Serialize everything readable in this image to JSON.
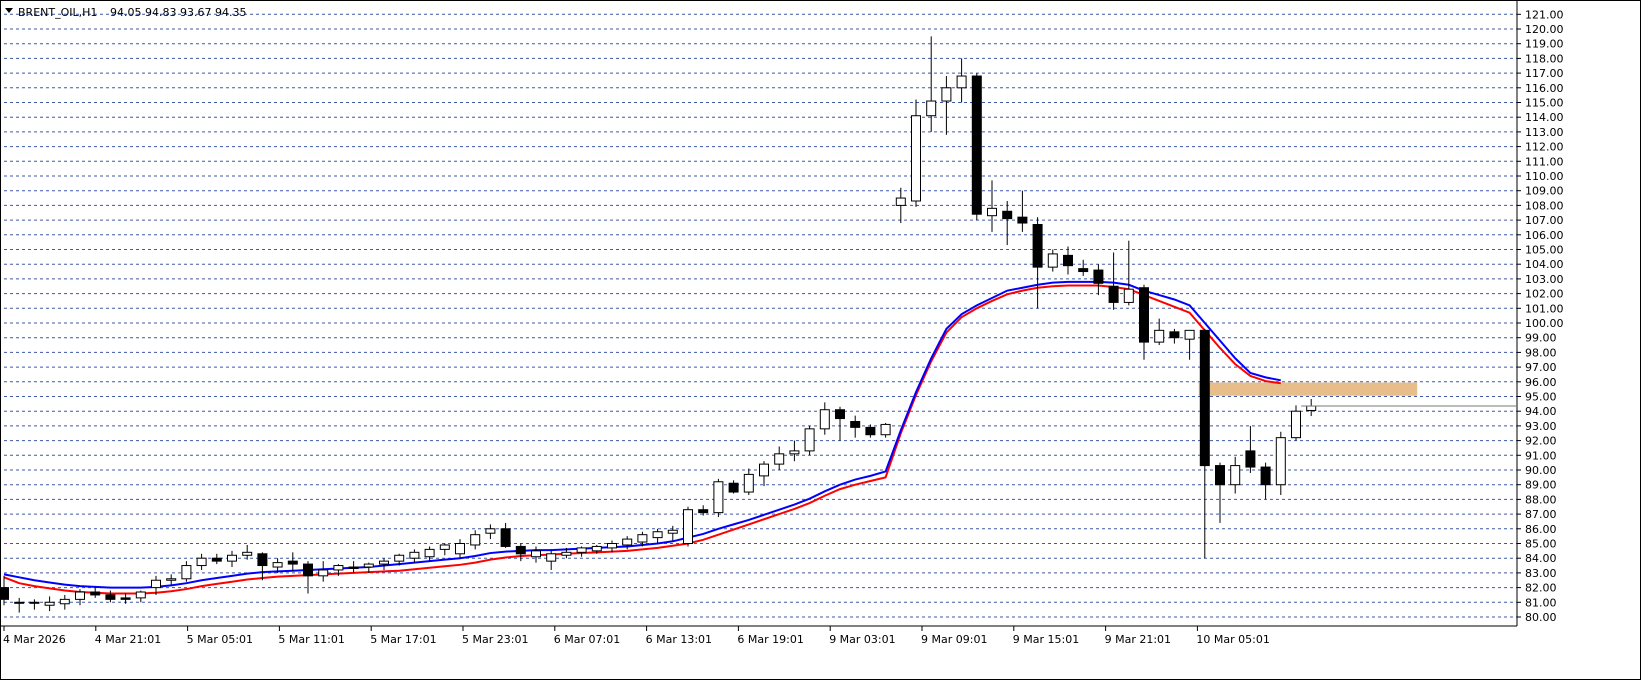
{
  "header": {
    "symbol": "BRENT_OIL,H1",
    "ohlc": "94.05 94.83 93.67 94.35"
  },
  "chart_data": {
    "type": "candlestick",
    "title": "BRENT_OIL,H1",
    "ylim": [
      80,
      121
    ],
    "y_ticks": [
      "80.00",
      "81.00",
      "82.00",
      "83.00",
      "84.00",
      "85.00",
      "86.00",
      "87.00",
      "88.00",
      "89.00",
      "90.00",
      "91.00",
      "92.00",
      "93.00",
      "94.00",
      "95.00",
      "96.00",
      "97.00",
      "98.00",
      "99.00",
      "100.00",
      "101.00",
      "102.00",
      "103.00",
      "104.00",
      "105.00",
      "106.00",
      "107.00",
      "108.00",
      "109.00",
      "110.00",
      "111.00",
      "112.00",
      "113.00",
      "114.00",
      "115.00",
      "116.00",
      "117.00",
      "118.00",
      "119.00",
      "120.00",
      "121.00"
    ],
    "x_labels": [
      "4 Mar 2026",
      "4 Mar 21:01",
      "5 Mar 05:01",
      "5 Mar 11:01",
      "5 Mar 17:01",
      "5 Mar 23:01",
      "6 Mar 07:01",
      "6 Mar 13:01",
      "6 Mar 19:01",
      "9 Mar 03:01",
      "9 Mar 09:01",
      "9 Mar 15:01",
      "9 Mar 21:01",
      "10 Mar 05:01"
    ],
    "grid": true,
    "grid_style": "dashed",
    "current_price": 94.35,
    "colors": {
      "background": "#ffffff",
      "grid": "#1e3c96",
      "bull_body": "#ffffff",
      "bear_body": "#000000",
      "ma_fast": "#0000ff",
      "ma_slow": "#ff0000",
      "zone": "#e6b983"
    },
    "candles": [
      {
        "o": 82.0,
        "h": 82.8,
        "l": 80.8,
        "c": 81.2
      },
      {
        "o": 81.0,
        "h": 81.3,
        "l": 80.3,
        "c": 81.0
      },
      {
        "o": 81.0,
        "h": 81.2,
        "l": 80.5,
        "c": 81.0
      },
      {
        "o": 80.8,
        "h": 81.4,
        "l": 80.4,
        "c": 81.0
      },
      {
        "o": 80.9,
        "h": 81.5,
        "l": 80.5,
        "c": 81.2
      },
      {
        "o": 81.2,
        "h": 81.9,
        "l": 80.8,
        "c": 81.7
      },
      {
        "o": 81.7,
        "h": 82.0,
        "l": 81.3,
        "c": 81.5
      },
      {
        "o": 81.5,
        "h": 81.8,
        "l": 81.0,
        "c": 81.2
      },
      {
        "o": 81.3,
        "h": 81.6,
        "l": 80.9,
        "c": 81.2
      },
      {
        "o": 81.3,
        "h": 81.8,
        "l": 81.0,
        "c": 81.7
      },
      {
        "o": 82.0,
        "h": 82.8,
        "l": 81.5,
        "c": 82.5
      },
      {
        "o": 82.5,
        "h": 82.9,
        "l": 82.2,
        "c": 82.6
      },
      {
        "o": 82.6,
        "h": 83.8,
        "l": 82.4,
        "c": 83.5
      },
      {
        "o": 83.5,
        "h": 84.3,
        "l": 83.2,
        "c": 84.0
      },
      {
        "o": 84.0,
        "h": 84.3,
        "l": 83.6,
        "c": 83.8
      },
      {
        "o": 83.8,
        "h": 84.5,
        "l": 83.4,
        "c": 84.2
      },
      {
        "o": 84.2,
        "h": 84.9,
        "l": 83.9,
        "c": 84.4
      },
      {
        "o": 84.3,
        "h": 84.4,
        "l": 82.5,
        "c": 83.5
      },
      {
        "o": 83.4,
        "h": 84.0,
        "l": 83.0,
        "c": 83.7
      },
      {
        "o": 83.8,
        "h": 84.4,
        "l": 83.1,
        "c": 83.6
      },
      {
        "o": 83.6,
        "h": 83.8,
        "l": 81.6,
        "c": 82.8
      },
      {
        "o": 82.8,
        "h": 83.8,
        "l": 82.4,
        "c": 83.2
      },
      {
        "o": 83.2,
        "h": 83.6,
        "l": 82.8,
        "c": 83.5
      },
      {
        "o": 83.4,
        "h": 83.8,
        "l": 83.0,
        "c": 83.3
      },
      {
        "o": 83.4,
        "h": 83.7,
        "l": 83.0,
        "c": 83.6
      },
      {
        "o": 83.6,
        "h": 84.0,
        "l": 83.2,
        "c": 83.8
      },
      {
        "o": 83.8,
        "h": 84.3,
        "l": 83.5,
        "c": 84.2
      },
      {
        "o": 84.0,
        "h": 84.6,
        "l": 83.7,
        "c": 84.4
      },
      {
        "o": 84.1,
        "h": 84.8,
        "l": 83.8,
        "c": 84.6
      },
      {
        "o": 84.6,
        "h": 85.0,
        "l": 84.2,
        "c": 84.9
      },
      {
        "o": 84.3,
        "h": 85.3,
        "l": 84.0,
        "c": 85.0
      },
      {
        "o": 84.9,
        "h": 85.9,
        "l": 84.6,
        "c": 85.6
      },
      {
        "o": 85.7,
        "h": 86.3,
        "l": 85.3,
        "c": 86.0
      },
      {
        "o": 86.0,
        "h": 86.4,
        "l": 84.7,
        "c": 84.8
      },
      {
        "o": 84.8,
        "h": 85.0,
        "l": 83.8,
        "c": 84.3
      },
      {
        "o": 84.1,
        "h": 84.8,
        "l": 83.7,
        "c": 84.5
      },
      {
        "o": 83.8,
        "h": 84.6,
        "l": 83.2,
        "c": 84.3
      },
      {
        "o": 84.2,
        "h": 84.7,
        "l": 84.0,
        "c": 84.4
      },
      {
        "o": 84.4,
        "h": 84.8,
        "l": 84.1,
        "c": 84.7
      },
      {
        "o": 84.5,
        "h": 84.9,
        "l": 84.3,
        "c": 84.8
      },
      {
        "o": 84.7,
        "h": 85.2,
        "l": 84.4,
        "c": 85.0
      },
      {
        "o": 84.9,
        "h": 85.5,
        "l": 84.6,
        "c": 85.3
      },
      {
        "o": 85.1,
        "h": 85.8,
        "l": 84.8,
        "c": 85.6
      },
      {
        "o": 85.4,
        "h": 86.0,
        "l": 85.0,
        "c": 85.8
      },
      {
        "o": 85.7,
        "h": 86.2,
        "l": 85.2,
        "c": 85.9
      },
      {
        "o": 85.0,
        "h": 87.5,
        "l": 84.8,
        "c": 87.3
      },
      {
        "o": 87.3,
        "h": 87.6,
        "l": 86.9,
        "c": 87.1
      },
      {
        "o": 87.1,
        "h": 89.4,
        "l": 86.8,
        "c": 89.2
      },
      {
        "o": 89.1,
        "h": 89.3,
        "l": 88.4,
        "c": 88.5
      },
      {
        "o": 88.5,
        "h": 90.1,
        "l": 88.3,
        "c": 89.7
      },
      {
        "o": 89.6,
        "h": 90.6,
        "l": 88.9,
        "c": 90.4
      },
      {
        "o": 90.4,
        "h": 91.6,
        "l": 90.0,
        "c": 91.1
      },
      {
        "o": 91.1,
        "h": 92.0,
        "l": 90.6,
        "c": 91.3
      },
      {
        "o": 91.3,
        "h": 93.0,
        "l": 91.0,
        "c": 92.8
      },
      {
        "o": 92.8,
        "h": 94.6,
        "l": 92.4,
        "c": 94.1
      },
      {
        "o": 94.1,
        "h": 94.3,
        "l": 92.0,
        "c": 93.5
      },
      {
        "o": 93.3,
        "h": 93.7,
        "l": 92.2,
        "c": 92.9
      },
      {
        "o": 92.9,
        "h": 93.1,
        "l": 92.2,
        "c": 92.4
      },
      {
        "o": 92.4,
        "h": 93.2,
        "l": 92.2,
        "c": 93.1
      },
      {
        "o": 108.0,
        "h": 109.2,
        "l": 106.8,
        "c": 108.5
      },
      {
        "o": 108.3,
        "h": 115.2,
        "l": 107.9,
        "c": 114.1
      },
      {
        "o": 114.1,
        "h": 119.5,
        "l": 113.0,
        "c": 115.1
      },
      {
        "o": 115.1,
        "h": 116.8,
        "l": 112.8,
        "c": 116.0
      },
      {
        "o": 116.0,
        "h": 118.0,
        "l": 115.0,
        "c": 116.8
      },
      {
        "o": 116.8,
        "h": 117.0,
        "l": 107.0,
        "c": 107.4
      },
      {
        "o": 107.3,
        "h": 109.7,
        "l": 106.2,
        "c": 107.8
      },
      {
        "o": 107.6,
        "h": 108.3,
        "l": 105.3,
        "c": 107.1
      },
      {
        "o": 107.2,
        "h": 109.0,
        "l": 106.2,
        "c": 106.8
      },
      {
        "o": 106.7,
        "h": 107.2,
        "l": 101.0,
        "c": 103.8
      },
      {
        "o": 103.8,
        "h": 105.0,
        "l": 103.5,
        "c": 104.7
      },
      {
        "o": 104.6,
        "h": 105.2,
        "l": 103.3,
        "c": 103.9
      },
      {
        "o": 103.7,
        "h": 104.3,
        "l": 103.2,
        "c": 103.5
      },
      {
        "o": 103.6,
        "h": 104.0,
        "l": 101.9,
        "c": 102.7
      },
      {
        "o": 102.5,
        "h": 104.8,
        "l": 100.9,
        "c": 101.4
      },
      {
        "o": 101.4,
        "h": 105.6,
        "l": 101.2,
        "c": 102.3
      },
      {
        "o": 102.4,
        "h": 102.6,
        "l": 97.5,
        "c": 98.7
      },
      {
        "o": 98.7,
        "h": 100.3,
        "l": 98.5,
        "c": 99.5
      },
      {
        "o": 99.4,
        "h": 99.6,
        "l": 98.6,
        "c": 99.0
      },
      {
        "o": 98.9,
        "h": 99.5,
        "l": 97.5,
        "c": 99.5
      },
      {
        "o": 99.5,
        "h": 99.6,
        "l": 84.0,
        "c": 90.3
      },
      {
        "o": 90.3,
        "h": 90.5,
        "l": 86.4,
        "c": 89.0
      },
      {
        "o": 89.0,
        "h": 90.9,
        "l": 88.4,
        "c": 90.3
      },
      {
        "o": 91.3,
        "h": 93.0,
        "l": 89.8,
        "c": 90.2
      },
      {
        "o": 90.2,
        "h": 90.5,
        "l": 88.0,
        "c": 89.0
      },
      {
        "o": 89.0,
        "h": 92.6,
        "l": 88.3,
        "c": 92.2
      },
      {
        "o": 92.2,
        "h": 94.4,
        "l": 92.0,
        "c": 94.0
      },
      {
        "o": 94.05,
        "h": 94.83,
        "l": 93.67,
        "c": 94.35
      }
    ],
    "ma_fast": [
      82.9,
      82.7,
      82.5,
      82.35,
      82.2,
      82.1,
      82.05,
      82.0,
      82.0,
      82.0,
      82.05,
      82.15,
      82.3,
      82.5,
      82.65,
      82.8,
      82.95,
      83.05,
      83.1,
      83.15,
      83.2,
      83.25,
      83.3,
      83.35,
      83.4,
      83.5,
      83.6,
      83.7,
      83.8,
      83.9,
      84.0,
      84.15,
      84.35,
      84.45,
      84.5,
      84.55,
      84.55,
      84.6,
      84.65,
      84.7,
      84.75,
      84.8,
      84.9,
      85.0,
      85.15,
      85.4,
      85.65,
      86.0,
      86.3,
      86.6,
      86.95,
      87.3,
      87.65,
      88.05,
      88.55,
      89.0,
      89.35,
      89.6,
      89.9,
      92.7,
      95.3,
      97.6,
      99.6,
      100.6,
      101.2,
      101.7,
      102.2,
      102.4,
      102.6,
      102.75,
      102.8,
      102.8,
      102.8,
      102.75,
      102.6,
      102.2,
      101.9,
      101.6,
      101.2,
      100.0,
      98.8,
      97.6,
      96.6,
      96.3,
      96.1
    ],
    "ma_slow": [
      82.7,
      82.3,
      82.1,
      81.95,
      81.8,
      81.7,
      81.65,
      81.6,
      81.6,
      81.6,
      81.65,
      81.75,
      81.9,
      82.1,
      82.25,
      82.4,
      82.55,
      82.65,
      82.75,
      82.8,
      82.85,
      82.9,
      82.95,
      83.0,
      83.05,
      83.1,
      83.15,
      83.25,
      83.35,
      83.45,
      83.55,
      83.7,
      83.9,
      84.05,
      84.15,
      84.2,
      84.25,
      84.3,
      84.35,
      84.4,
      84.45,
      84.5,
      84.6,
      84.7,
      84.85,
      85.0,
      85.25,
      85.6,
      85.95,
      86.3,
      86.65,
      87.0,
      87.35,
      87.75,
      88.25,
      88.7,
      89.0,
      89.25,
      89.5,
      92.5,
      95.1,
      97.4,
      99.35,
      100.4,
      101.0,
      101.5,
      101.95,
      102.2,
      102.4,
      102.5,
      102.55,
      102.55,
      102.55,
      102.45,
      102.3,
      101.9,
      101.5,
      101.1,
      100.7,
      99.5,
      98.3,
      97.2,
      96.4,
      96.05,
      95.9
    ],
    "zone": {
      "low": 95.05,
      "high": 95.95,
      "from_index": 79,
      "to_index": 86
    }
  }
}
